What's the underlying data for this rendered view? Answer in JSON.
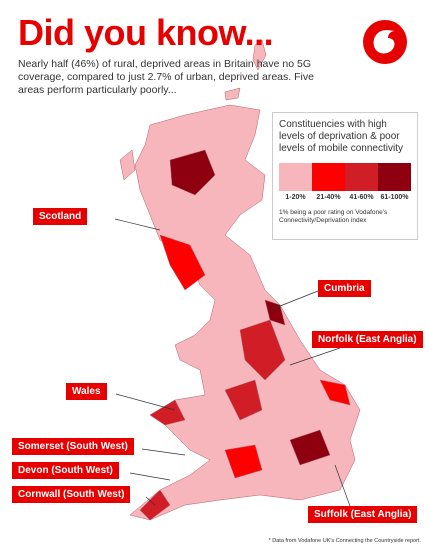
{
  "header": {
    "title": "Did you know...",
    "subtitle": "Nearly half (46%) of rural, deprived areas in Britain have no 5G coverage, compared to just 2.7% of urban, deprived areas. Five areas perform particularly poorly..."
  },
  "legend": {
    "title": "Constituencies with high levels of deprivation & poor levels of mobile connectivity",
    "items": [
      {
        "label": "1-20%",
        "color": "#f7b6bb"
      },
      {
        "label": "21-40%",
        "color": "#ff0000"
      },
      {
        "label": "41-60%",
        "color": "#d01d26"
      },
      {
        "label": "61-100%",
        "color": "#8e0010"
      }
    ],
    "note": "1% being a poor rating on Vodafone's Connectivity/Deprivation index"
  },
  "regions": [
    "Scotland",
    "Cumbria",
    "Norfolk (East Anglia)",
    "Wales",
    "Somerset (South West)",
    "Devon (South West)",
    "Cornwall (South West)",
    "Suffolk (East Anglia)"
  ],
  "footnote": "* Data from Vodafone UK's Connecting the Countryside report."
}
